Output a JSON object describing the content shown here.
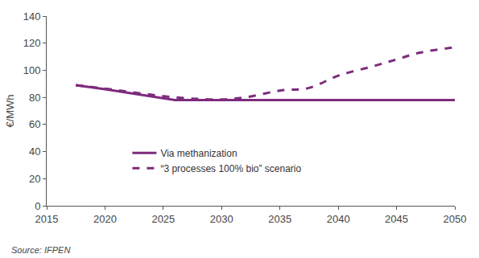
{
  "chart_data": {
    "type": "line",
    "y_label": "€/MWh",
    "x": [
      2017.5,
      2020,
      2026,
      2030,
      2032,
      2035,
      2037.5,
      2040,
      2043,
      2045,
      2047,
      2050
    ],
    "series": [
      {
        "name": "Via methanization",
        "color": "#7d2b7d",
        "line_style": "solid",
        "values": [
          89,
          86,
          78,
          78,
          78,
          78,
          78,
          78,
          78,
          78,
          78,
          78
        ]
      },
      {
        "name": "“3 processes 100% bio” scenario",
        "color": "#7d2b7d",
        "line_style": "dash",
        "values": [
          89,
          86.5,
          80,
          78.5,
          80,
          85,
          87,
          96,
          103,
          108,
          113,
          117
        ]
      }
    ],
    "xlim": [
      2015,
      2050
    ],
    "xticks": [
      2015,
      2020,
      2025,
      2030,
      2035,
      2040,
      2045,
      2050
    ],
    "ylim": [
      0,
      140
    ],
    "yticks": [
      0,
      20,
      40,
      60,
      80,
      100,
      120,
      140
    ],
    "grid": false,
    "legend": "lower left",
    "annotations": [
      {
        "text": "Source: IFPEN"
      }
    ]
  }
}
